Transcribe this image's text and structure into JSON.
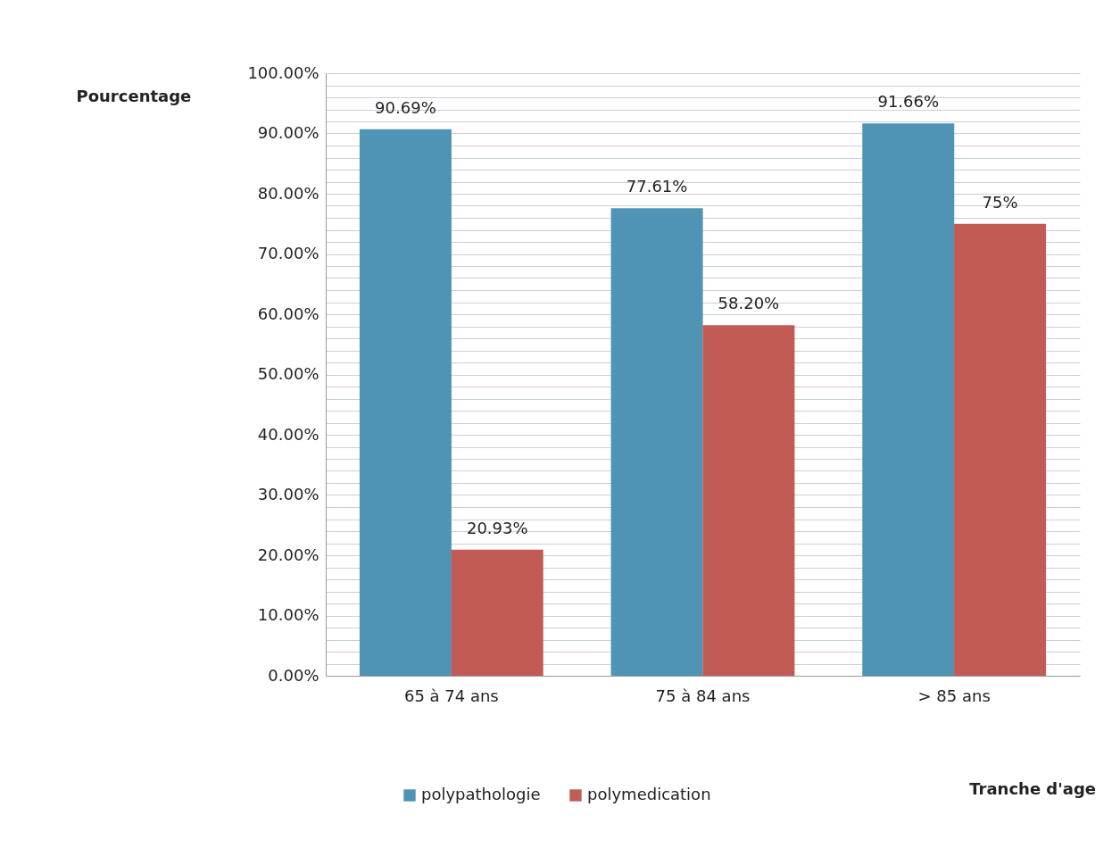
{
  "chart_data": {
    "type": "bar",
    "annotations": [
      "Tranche d'age"
    ],
    "ylabel": "Pourcentage",
    "categories": [
      "65 à 74 ans",
      "75 à 84 ans",
      "> 85 ans"
    ],
    "series": [
      {
        "name": "polypathologie",
        "color": "#4f94b5",
        "values": [
          90.69,
          77.61,
          91.66
        ],
        "value_labels": [
          "90.69%",
          "77.61%",
          "91.66%"
        ]
      },
      {
        "name": "polymedication",
        "color": "#c25b56",
        "values": [
          20.93,
          58.2,
          75
        ],
        "value_labels": [
          "20.93%",
          "58.20%",
          "75%"
        ]
      }
    ],
    "ylim": [
      0,
      100
    ],
    "yticks": [
      {
        "value": 0,
        "label": "0.00%"
      },
      {
        "value": 2,
        "label": null
      },
      {
        "value": 4,
        "label": null
      },
      {
        "value": 6,
        "label": null
      },
      {
        "value": 8,
        "label": null
      },
      {
        "value": 10,
        "label": "10.00%"
      },
      {
        "value": 12,
        "label": null
      },
      {
        "value": 14,
        "label": null
      },
      {
        "value": 16,
        "label": null
      },
      {
        "value": 18,
        "label": null
      },
      {
        "value": 20,
        "label": "20.00%"
      },
      {
        "value": 22,
        "label": null
      },
      {
        "value": 24,
        "label": null
      },
      {
        "value": 26,
        "label": null
      },
      {
        "value": 28,
        "label": null
      },
      {
        "value": 30,
        "label": "30.00%"
      },
      {
        "value": 32,
        "label": null
      },
      {
        "value": 34,
        "label": null
      },
      {
        "value": 36,
        "label": null
      },
      {
        "value": 38,
        "label": null
      },
      {
        "value": 40,
        "label": "40.00%"
      },
      {
        "value": 42,
        "label": null
      },
      {
        "value": 44,
        "label": null
      },
      {
        "value": 46,
        "label": null
      },
      {
        "value": 48,
        "label": null
      },
      {
        "value": 50,
        "label": "50.00%"
      },
      {
        "value": 52,
        "label": null
      },
      {
        "value": 54,
        "label": null
      },
      {
        "value": 56,
        "label": null
      },
      {
        "value": 58,
        "label": null
      },
      {
        "value": 60,
        "label": "60.00%"
      },
      {
        "value": 62,
        "label": null
      },
      {
        "value": 64,
        "label": null
      },
      {
        "value": 66,
        "label": null
      },
      {
        "value": 68,
        "label": null
      },
      {
        "value": 70,
        "label": "70.00%"
      },
      {
        "value": 72,
        "label": null
      },
      {
        "value": 74,
        "label": null
      },
      {
        "value": 76,
        "label": null
      },
      {
        "value": 78,
        "label": null
      },
      {
        "value": 80,
        "label": "80.00%"
      },
      {
        "value": 82,
        "label": null
      },
      {
        "value": 84,
        "label": null
      },
      {
        "value": 86,
        "label": null
      },
      {
        "value": 88,
        "label": null
      },
      {
        "value": 90,
        "label": "90.00%"
      },
      {
        "value": 92,
        "label": null
      },
      {
        "value": 94,
        "label": null
      },
      {
        "value": 96,
        "label": null
      },
      {
        "value": 98,
        "label": null
      },
      {
        "value": 100,
        "label": "100.00%"
      }
    ],
    "grid": "y",
    "legend": "bottom"
  }
}
